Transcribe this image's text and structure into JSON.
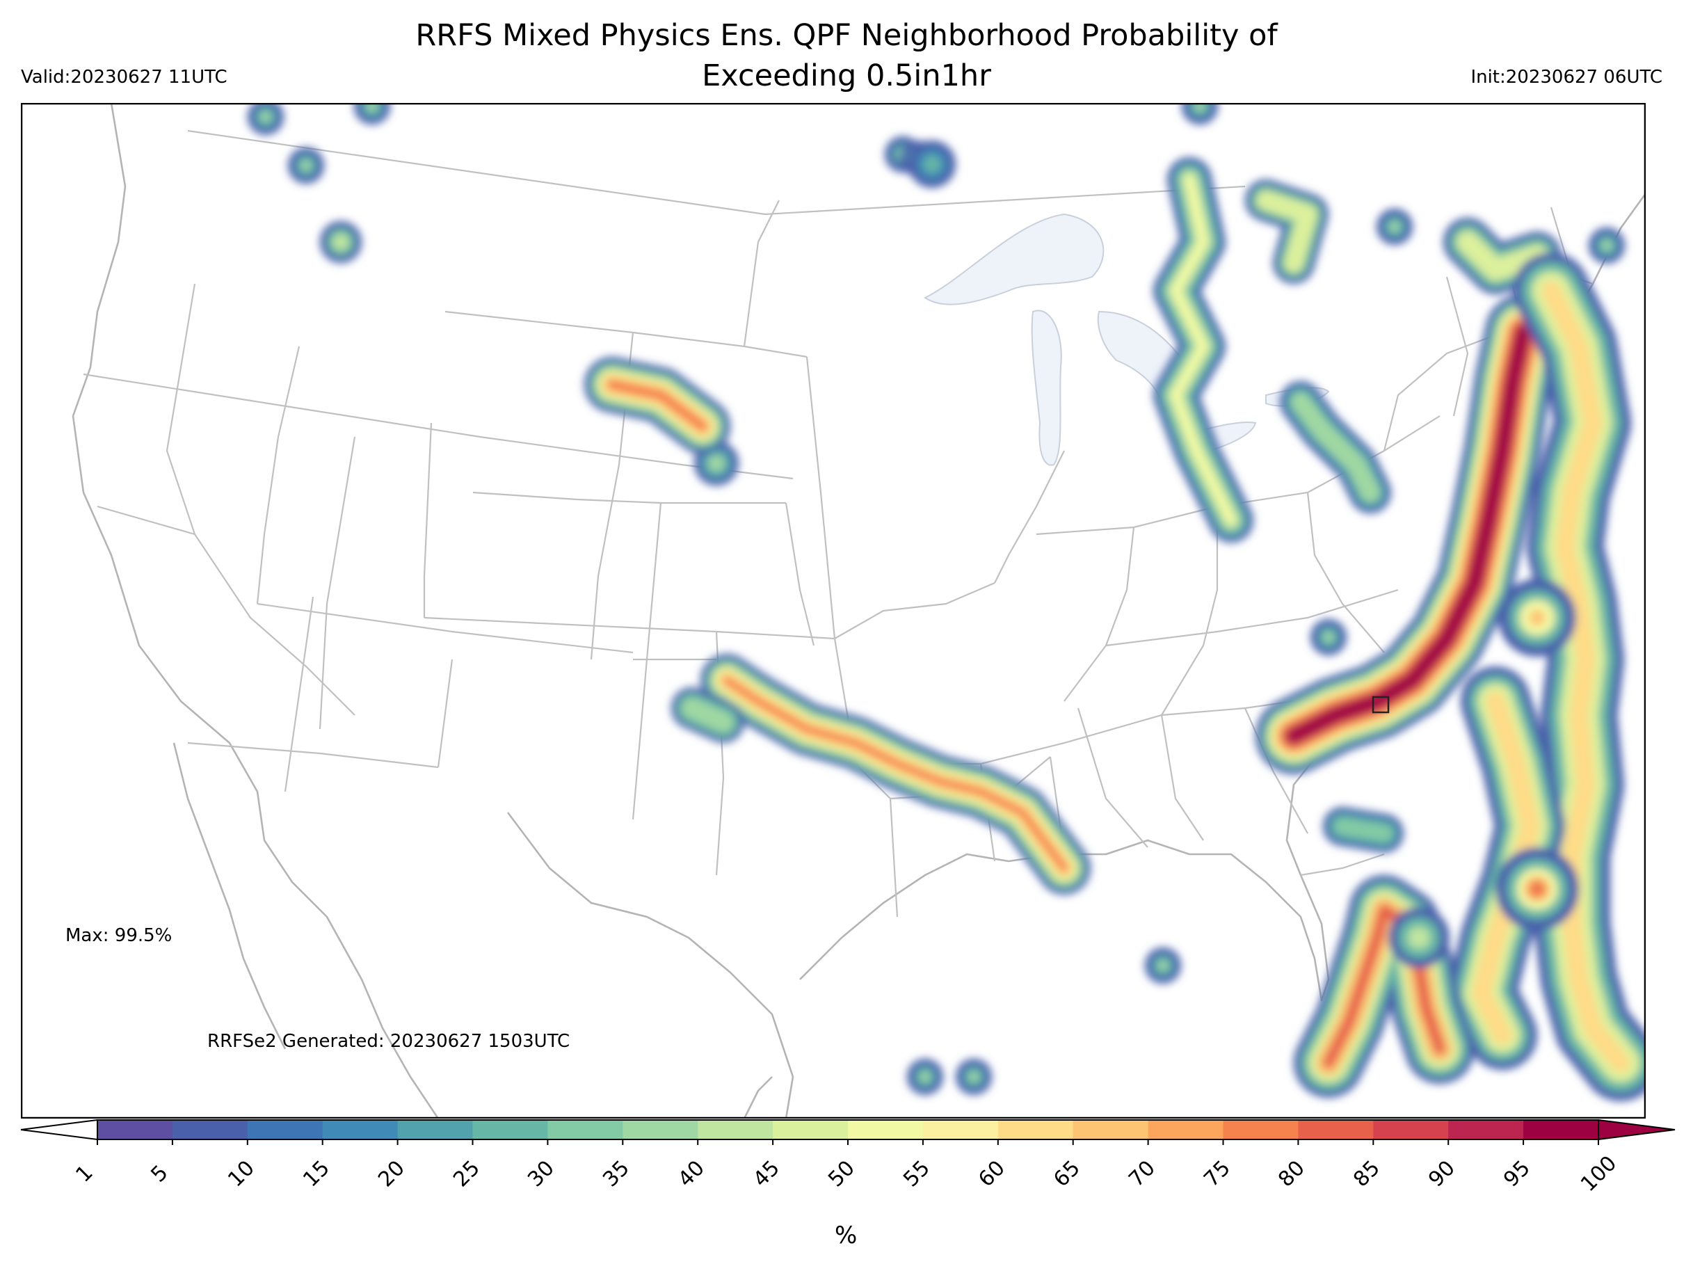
{
  "header": {
    "title_line1": "RRFS Mixed Physics Ens. QPF Neighborhood Probability of",
    "title_line2": "Exceeding 0.5in1hr",
    "valid": "Valid:20230627 11UTC",
    "init": "Init:20230627 06UTC"
  },
  "annotations": {
    "max": "Max: 99.5%",
    "generated": "RRFSe2 Generated: 20230627 1503UTC"
  },
  "colorbar": {
    "label": "%",
    "ticks": [
      "1",
      "5",
      "10",
      "15",
      "20",
      "25",
      "30",
      "35",
      "40",
      "45",
      "50",
      "55",
      "60",
      "65",
      "70",
      "75",
      "80",
      "85",
      "90",
      "95",
      "100"
    ],
    "colors": [
      "#5e4fa2",
      "#4a60ab",
      "#3e75b4",
      "#3f8ab6",
      "#51a2ad",
      "#66b7a6",
      "#83cba4",
      "#a0d8a3",
      "#bfe5a0",
      "#dbf09c",
      "#f2f9a5",
      "#fbf0a0",
      "#fedc88",
      "#fdc473",
      "#fca55c",
      "#f6834e",
      "#e7614b",
      "#d6434e",
      "#bb2550",
      "#9e0142"
    ]
  },
  "colors": {
    "land_border": "#b4b4b4",
    "lake": "#f0f4fa"
  }
}
